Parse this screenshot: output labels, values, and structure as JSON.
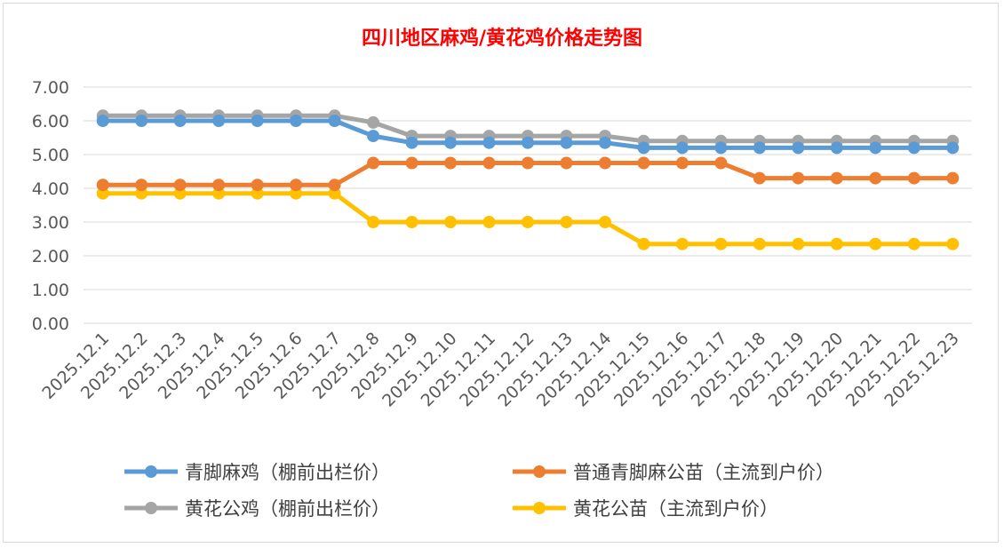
{
  "chart_data": {
    "type": "line",
    "title": "四川地区麻鸡/黄花鸡价格走势图",
    "xlabel": "",
    "ylabel": "",
    "ylim": [
      0,
      7
    ],
    "yticks": [
      "0.00",
      "1.00",
      "2.00",
      "3.00",
      "4.00",
      "5.00",
      "6.00",
      "7.00"
    ],
    "grid": true,
    "legend_position": "bottom",
    "categories": [
      "2025.12.1",
      "2025.12.2",
      "2025.12.3",
      "2025.12.4",
      "2025.12.5",
      "2025.12.6",
      "2025.12.7",
      "2025.12.8",
      "2025.12.9",
      "2025.12.10",
      "2025.12.11",
      "2025.12.12",
      "2025.12.13",
      "2025.12.14",
      "2025.12.15",
      "2025.12.16",
      "2025.12.17",
      "2025.12.18",
      "2025.12.19",
      "2025.12.20",
      "2025.12.21",
      "2025.12.22",
      "2025.12.23"
    ],
    "series": [
      {
        "name": "青脚麻鸡（棚前出栏价）",
        "color": "#5b9bd5",
        "values": [
          6.0,
          6.0,
          6.0,
          6.0,
          6.0,
          6.0,
          6.0,
          5.55,
          5.35,
          5.35,
          5.35,
          5.35,
          5.35,
          5.35,
          5.2,
          5.2,
          5.2,
          5.2,
          5.2,
          5.2,
          5.2,
          5.2,
          5.2
        ]
      },
      {
        "name": "普通青脚麻公苗（主流到户价）",
        "color": "#ed7d31",
        "values": [
          4.1,
          4.1,
          4.1,
          4.1,
          4.1,
          4.1,
          4.1,
          4.75,
          4.75,
          4.75,
          4.75,
          4.75,
          4.75,
          4.75,
          4.75,
          4.75,
          4.75,
          4.3,
          4.3,
          4.3,
          4.3,
          4.3,
          4.3
        ]
      },
      {
        "name": "黄花公鸡（棚前出栏价）",
        "color": "#a5a5a5",
        "values": [
          6.15,
          6.15,
          6.15,
          6.15,
          6.15,
          6.15,
          6.15,
          5.95,
          5.55,
          5.55,
          5.55,
          5.55,
          5.55,
          5.55,
          5.4,
          5.4,
          5.4,
          5.4,
          5.4,
          5.4,
          5.4,
          5.4,
          5.4
        ]
      },
      {
        "name": "黄花公苗（主流到户价）",
        "color": "#ffc000",
        "values": [
          3.85,
          3.85,
          3.85,
          3.85,
          3.85,
          3.85,
          3.85,
          3.0,
          3.0,
          3.0,
          3.0,
          3.0,
          3.0,
          3.0,
          2.35,
          2.35,
          2.35,
          2.35,
          2.35,
          2.35,
          2.35,
          2.35,
          2.35
        ]
      }
    ]
  }
}
